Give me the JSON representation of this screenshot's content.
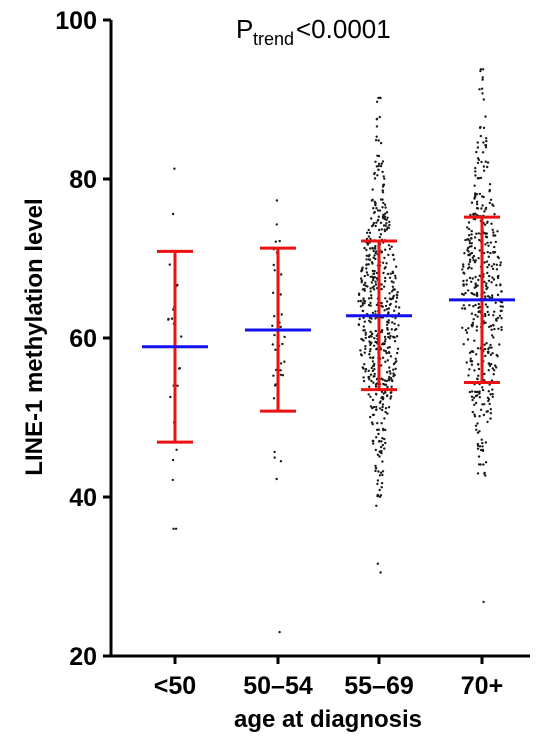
{
  "chart_data": {
    "type": "scatter",
    "subtype": "dot-plot with mean and SD bars",
    "ylabel": "LINE-1 methylation level",
    "xlabel": "age at diagnosis",
    "ylim": [
      20,
      100
    ],
    "yticks": [
      20,
      40,
      60,
      80,
      100
    ],
    "grid": false,
    "annotation": {
      "main": "P",
      "sub": "trend",
      "rest": " <0.0001"
    },
    "groups": [
      {
        "category": "<50",
        "mean": 58.9,
        "sd_low": 46.9,
        "sd_high": 70.9,
        "n_points": 25,
        "min": 36.0,
        "max": 81.3
      },
      {
        "category": "50–54",
        "mean": 61.0,
        "sd_low": 50.8,
        "sd_high": 71.3,
        "n_points": 40,
        "min": 23.0,
        "max": 77.3
      },
      {
        "category": "55–69",
        "mean": 62.8,
        "sd_low": 53.5,
        "sd_high": 72.2,
        "n_points": 550,
        "min": 30.5,
        "max": 90.2
      },
      {
        "category": "70+",
        "mean": 64.8,
        "sd_low": 54.4,
        "sd_high": 75.2,
        "n_points": 450,
        "min": 26.8,
        "max": 93.8
      }
    ],
    "colors": {
      "mean": "#1111ee",
      "sd": "#ee1111",
      "points": "#1a1a1a",
      "axis": "#000000"
    }
  }
}
